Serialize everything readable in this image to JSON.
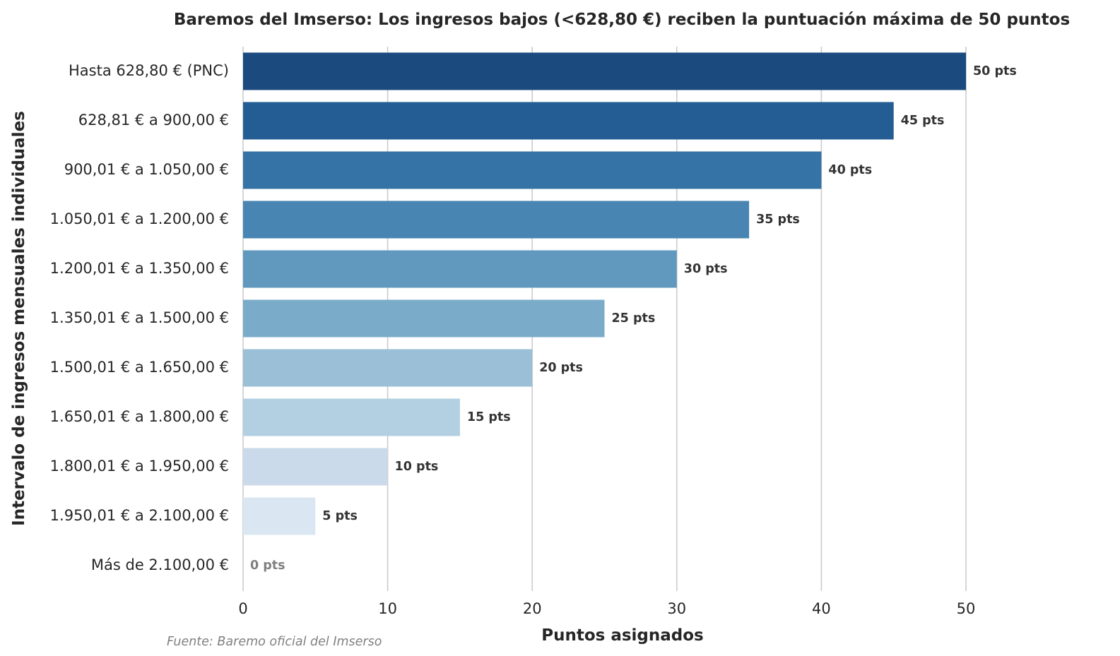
{
  "chart_data": {
    "type": "bar",
    "orientation": "horizontal",
    "title": "Baremos del Imserso: Los ingresos bajos (<628,80 €) reciben la puntuación máxima de 50 puntos",
    "xlabel": "Puntos asignados",
    "ylabel": "Intervalo de ingresos mensuales individuales",
    "xlim": [
      0,
      50
    ],
    "xticks": [
      "0",
      "10",
      "20",
      "30",
      "40",
      "50"
    ],
    "grid": "vertical",
    "categories": [
      "Hasta 628,80 € (PNC)",
      "628,81 € a 900,00 €",
      "900,01 € a 1.050,00 €",
      "1.050,01 € a 1.200,00 €",
      "1.200,01 € a 1.350,00 €",
      "1.350,01 € a 1.500,00 €",
      "1.500,01 € a 1.650,00 €",
      "1.650,01 € a 1.800,00 €",
      "1.800,01 € a 1.950,00 €",
      "1.950,01 € a 2.100,00 €",
      "Más de 2.100,00 €"
    ],
    "values": [
      50,
      45,
      40,
      35,
      30,
      25,
      20,
      15,
      10,
      5,
      0
    ],
    "data_labels": [
      "50 pts",
      "45 pts",
      "40 pts",
      "35 pts",
      "30 pts",
      "25 pts",
      "20 pts",
      "15 pts",
      "10 pts",
      "5 pts",
      "0 pts"
    ],
    "colors": [
      "#1a4a7e",
      "#235d94",
      "#3573a6",
      "#4885b2",
      "#6199be",
      "#7aacca",
      "#9abfd6",
      "#b3cfe2",
      "#cbdaea",
      "#dae7f3",
      "#ffffff"
    ],
    "label_color": "#333333",
    "zero_label_color": "#808080",
    "source": "Fuente: Baremo oficial del Imserso"
  }
}
